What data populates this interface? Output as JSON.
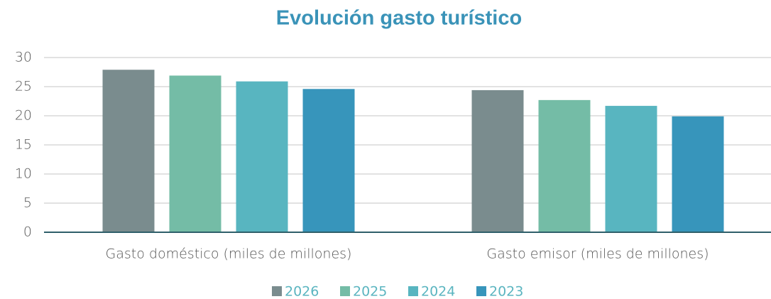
{
  "chart_data": {
    "type": "bar",
    "title": "Evolución gasto turístico",
    "categories": [
      "Gasto doméstico (miles de millones)",
      "Gasto emisor (miles de millones)"
    ],
    "series": [
      {
        "name": "2026",
        "color": "#7a8c8e",
        "values": [
          27.9,
          24.4
        ]
      },
      {
        "name": "2025",
        "color": "#74bca6",
        "values": [
          26.9,
          22.7
        ]
      },
      {
        "name": "2024",
        "color": "#58b5c0",
        "values": [
          25.9,
          21.7
        ]
      },
      {
        "name": "2023",
        "color": "#3795bb",
        "values": [
          24.6,
          19.9
        ]
      }
    ],
    "ylim": [
      0,
      30
    ],
    "yticks": [
      0,
      5,
      10,
      15,
      20,
      25,
      30
    ],
    "grid": true,
    "legend": "bottom"
  }
}
